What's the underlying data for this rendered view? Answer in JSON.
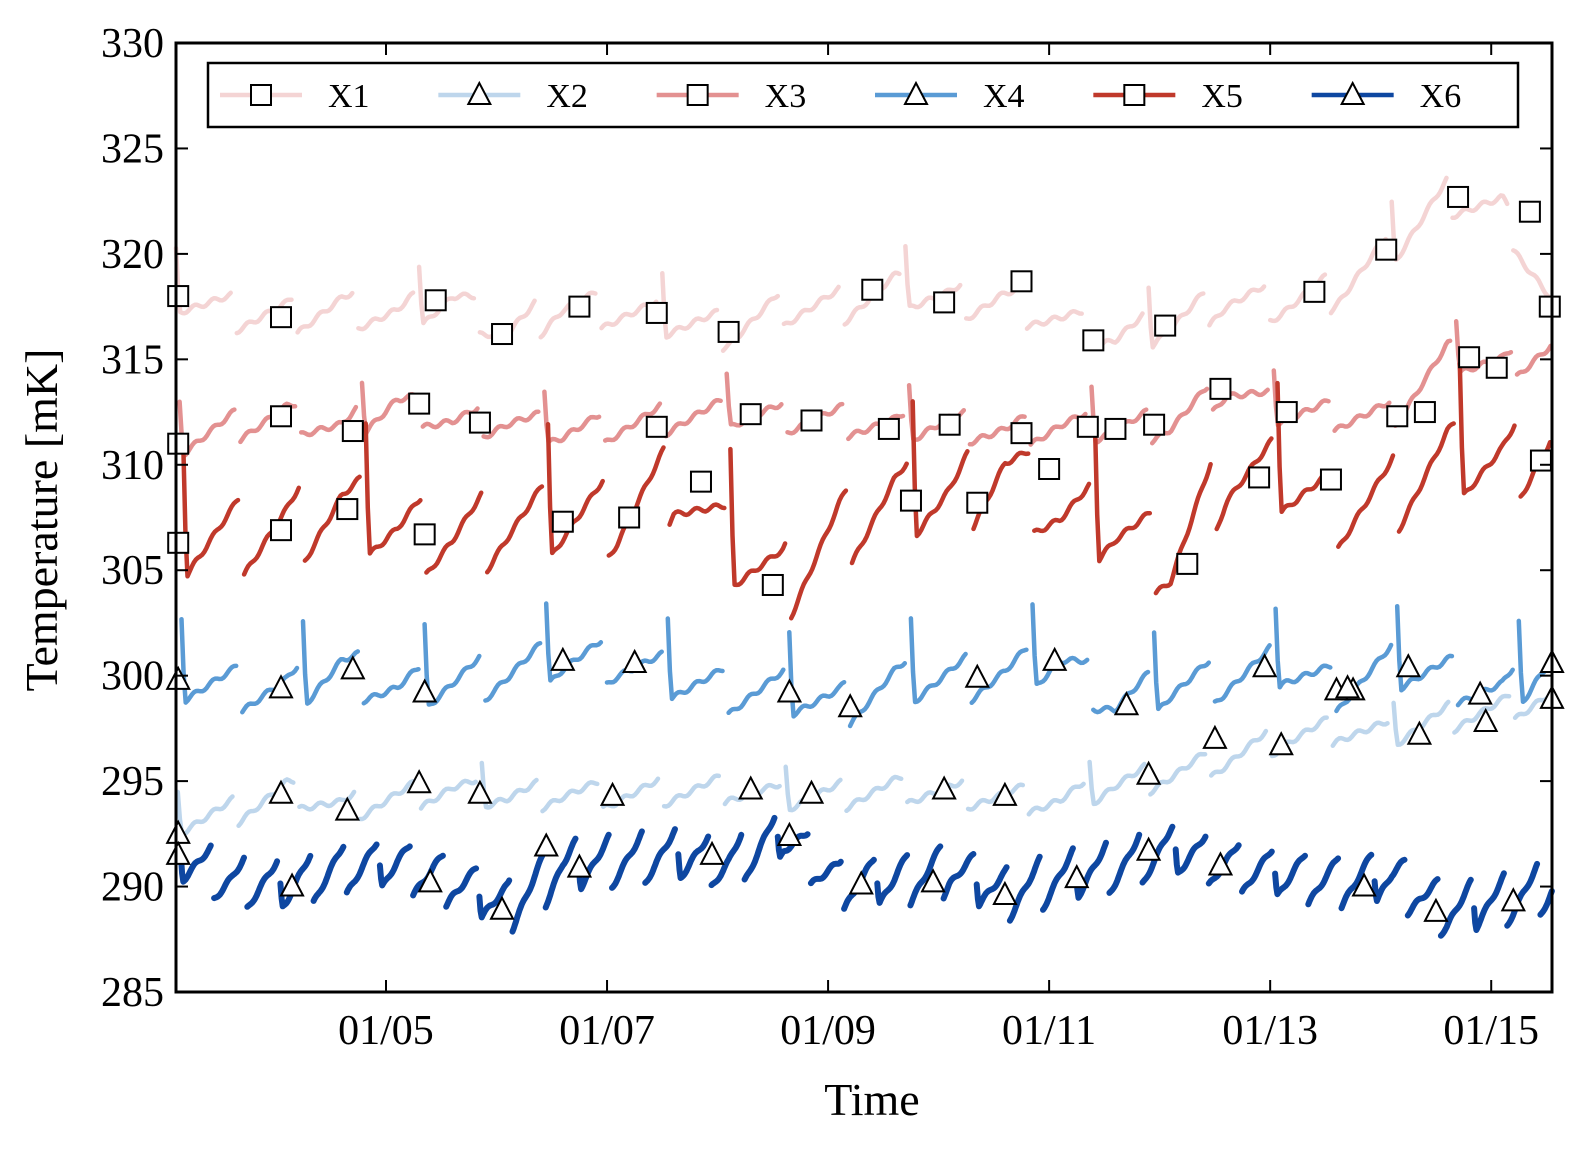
{
  "chart_data": {
    "type": "line",
    "title": "",
    "xlabel": "Time",
    "ylabel": "Temperature [mK]",
    "ylim": [
      285,
      330
    ],
    "xlim": [
      3.1,
      15.55
    ],
    "yticks": [
      285,
      290,
      295,
      300,
      305,
      310,
      315,
      320,
      325,
      330
    ],
    "xticks": [
      {
        "value": 5,
        "label": "01/05"
      },
      {
        "value": 7,
        "label": "01/07"
      },
      {
        "value": 9,
        "label": "01/09"
      },
      {
        "value": 11,
        "label": "01/11"
      },
      {
        "value": 13,
        "label": "01/13"
      },
      {
        "value": 15,
        "label": "01/15"
      }
    ],
    "legend_position": "top",
    "x_units": "day of January",
    "series": [
      {
        "name": "X1",
        "color": "#f4d4d4",
        "marker": "square",
        "base": 316.8,
        "trend": 0.25,
        "amp": 1.2,
        "period": 0.55,
        "phase": 0.0,
        "spike": 3.0,
        "spike_every": 4,
        "x": [
          3.1,
          3.6,
          4.1,
          4.6,
          5.1,
          5.6,
          6.1,
          6.6,
          7.1,
          7.6,
          8.1,
          8.6,
          9.1,
          9.6,
          10.1,
          10.6,
          11.1,
          11.6,
          12.1,
          12.6,
          13.1,
          13.6,
          14.1,
          14.6,
          15.1,
          15.55
        ],
        "y": [
          318.0,
          317.2,
          317.0,
          317.4,
          317.0,
          317.8,
          316.2,
          317.5,
          317.2,
          316.8,
          316.3,
          317.4,
          317.5,
          318.3,
          317.7,
          317.8,
          316.8,
          315.9,
          316.6,
          317.8,
          317.6,
          318.2,
          320.2,
          322.7,
          322.0,
          317.5
        ],
        "markers": {
          "x": [
            3.12,
            4.05,
            5.45,
            6.05,
            6.75,
            7.45,
            8.1,
            9.4,
            10.05,
            10.75,
            11.4,
            12.05,
            13.4,
            14.05,
            14.7,
            15.35,
            15.53
          ],
          "y": [
            318.0,
            317.0,
            317.8,
            316.2,
            317.5,
            317.2,
            316.3,
            318.3,
            317.7,
            318.7,
            315.9,
            316.6,
            318.2,
            320.2,
            322.7,
            322.0,
            317.5
          ]
        }
      },
      {
        "name": "X2",
        "color": "#bed6ec",
        "marker": "triangle",
        "base": 294.3,
        "trend": 0.35,
        "amp": 0.9,
        "period": 0.55,
        "phase": 0.1,
        "spike": 2.0,
        "spike_every": 5,
        "x": [
          3.1,
          3.6,
          4.1,
          4.6,
          5.1,
          5.6,
          6.1,
          6.6,
          7.1,
          7.6,
          8.1,
          8.6,
          9.1,
          9.6,
          10.1,
          10.6,
          11.1,
          11.6,
          12.1,
          12.6,
          13.1,
          13.6,
          14.1,
          14.6,
          15.1,
          15.55
        ],
        "y": [
          293.0,
          293.5,
          294.5,
          293.7,
          294.2,
          294.6,
          294.2,
          294.4,
          294.3,
          294.5,
          294.6,
          294.2,
          294.3,
          294.6,
          294.4,
          294.2,
          294.0,
          294.8,
          295.3,
          296.0,
          297.0,
          297.4,
          297.2,
          298.0,
          298.4,
          299.0
        ],
        "markers": {
          "x": [
            3.12,
            4.05,
            4.65,
            5.3,
            5.85,
            6.45,
            7.05,
            8.3,
            8.85,
            10.05,
            10.6,
            11.9,
            12.5,
            13.1,
            13.75,
            14.35,
            14.95,
            15.55
          ],
          "y": [
            292.5,
            294.4,
            293.6,
            294.9,
            294.4,
            291.9,
            294.3,
            294.6,
            294.4,
            294.6,
            294.3,
            295.3,
            297.0,
            296.7,
            299.3,
            297.2,
            297.8,
            298.9
          ]
        }
      },
      {
        "name": "X3",
        "color": "#e39191",
        "marker": "square",
        "base": 311.8,
        "trend": 0.3,
        "amp": 1.0,
        "period": 0.55,
        "phase": 0.2,
        "spike": 2.6,
        "spike_every": 3,
        "x": [
          3.1,
          3.6,
          4.1,
          4.6,
          5.1,
          5.6,
          6.1,
          6.6,
          7.1,
          7.6,
          8.1,
          8.6,
          9.1,
          9.6,
          10.1,
          10.6,
          11.1,
          11.6,
          12.1,
          12.6,
          13.1,
          13.6,
          14.1,
          14.6,
          15.1,
          15.55
        ],
        "y": [
          311.0,
          311.8,
          312.3,
          311.6,
          312.9,
          312.0,
          312.0,
          311.5,
          311.8,
          312.2,
          312.4,
          312.2,
          312.1,
          311.7,
          311.9,
          311.5,
          311.8,
          311.7,
          311.9,
          313.6,
          312.5,
          312.3,
          312.3,
          315.1,
          314.6,
          315.5
        ],
        "markers": {
          "x": [
            3.12,
            4.05,
            4.7,
            5.3,
            5.85,
            7.45,
            8.3,
            8.85,
            9.55,
            10.1,
            10.75,
            11.35,
            11.6,
            11.95,
            12.55,
            13.15,
            14.15,
            14.4,
            14.8,
            15.05
          ],
          "y": [
            311.0,
            312.3,
            311.6,
            312.9,
            312.0,
            311.8,
            312.4,
            312.1,
            311.7,
            311.9,
            311.5,
            311.8,
            311.7,
            311.9,
            313.6,
            312.5,
            312.3,
            312.5,
            315.1,
            314.6
          ]
        }
      },
      {
        "name": "X4",
        "color": "#5a9bd5",
        "marker": "triangle",
        "base": 299.2,
        "trend": 0.1,
        "amp": 1.5,
        "period": 0.55,
        "phase": 0.3,
        "spike": 4.0,
        "spike_every": 2,
        "x": [
          3.1,
          3.6,
          4.1,
          4.6,
          5.1,
          5.6,
          6.1,
          6.6,
          7.1,
          7.6,
          8.1,
          8.6,
          9.1,
          9.6,
          10.1,
          10.6,
          11.1,
          11.6,
          12.1,
          12.6,
          13.1,
          13.6,
          14.1,
          14.6,
          15.1,
          15.55
        ],
        "y": [
          299.8,
          299.4,
          299.2,
          300.3,
          299.2,
          299.6,
          300.1,
          300.7,
          300.6,
          299.8,
          299.2,
          299.2,
          298.5,
          299.6,
          299.8,
          300.0,
          300.7,
          298.6,
          299.4,
          299.8,
          300.4,
          299.3,
          300.4,
          299.9,
          299.0,
          300.6
        ],
        "markers": {
          "x": [
            3.12,
            4.05,
            4.7,
            5.35,
            6.6,
            7.25,
            8.65,
            9.2,
            10.35,
            11.05,
            11.7,
            12.95,
            13.6,
            13.7,
            14.25,
            14.9,
            15.55
          ],
          "y": [
            299.8,
            299.4,
            300.3,
            299.2,
            300.7,
            300.6,
            299.2,
            298.5,
            299.9,
            300.7,
            298.6,
            300.4,
            299.3,
            299.4,
            300.4,
            299.1,
            300.6
          ]
        }
      },
      {
        "name": "X5",
        "color": "#c0392b",
        "marker": "square",
        "base": 306.5,
        "trend": 0.35,
        "amp": 2.6,
        "period": 0.55,
        "phase": 0.4,
        "spike": 6.5,
        "spike_every": 3,
        "x": [
          3.1,
          3.6,
          4.1,
          4.6,
          5.1,
          5.6,
          6.1,
          6.6,
          7.1,
          7.6,
          8.1,
          8.6,
          9.1,
          9.6,
          10.1,
          10.6,
          11.1,
          11.6,
          12.1,
          12.6,
          13.1,
          13.6,
          14.1,
          14.6,
          15.1,
          15.55
        ],
        "y": [
          306.3,
          306.5,
          306.9,
          307.9,
          306.7,
          306.5,
          307.0,
          307.3,
          307.5,
          309.2,
          306.0,
          304.3,
          306.8,
          308.3,
          308.2,
          309.8,
          307.5,
          306.9,
          305.3,
          309.4,
          309.3,
          307.8,
          308.5,
          310.2,
          309.8,
          311.0
        ],
        "markers": {
          "x": [
            3.12,
            4.05,
            4.65,
            5.35,
            6.6,
            7.2,
            7.85,
            8.5,
            9.75,
            10.35,
            11.0,
            12.25,
            12.9,
            13.55,
            15.45
          ],
          "y": [
            306.3,
            306.9,
            307.9,
            306.7,
            307.3,
            307.5,
            309.2,
            304.3,
            308.3,
            308.2,
            309.8,
            305.3,
            309.4,
            309.3,
            310.2
          ]
        }
      },
      {
        "name": "X6",
        "color": "#0e47a1",
        "marker": "triangle",
        "base": 290.0,
        "trend": 0.12,
        "amp": 1.7,
        "period": 0.3,
        "phase": 0.5,
        "spike": 1.2,
        "spike_every": 3,
        "x": [
          3.1,
          3.6,
          4.1,
          4.6,
          5.1,
          5.6,
          6.1,
          6.6,
          7.1,
          7.6,
          8.1,
          8.6,
          9.1,
          9.6,
          10.1,
          10.6,
          11.1,
          11.6,
          12.1,
          12.6,
          13.1,
          13.6,
          14.1,
          14.6,
          15.1,
          15.55
        ],
        "y": [
          291.5,
          290.2,
          290.0,
          290.8,
          291.0,
          290.2,
          289.0,
          290.9,
          291.2,
          291.5,
          291.0,
          292.4,
          290.1,
          290.2,
          290.8,
          289.6,
          290.4,
          290.9,
          291.7,
          291.0,
          290.5,
          290.2,
          290.4,
          288.8,
          289.3,
          290.0
        ],
        "markers": {
          "x": [
            3.12,
            4.15,
            5.4,
            6.05,
            6.75,
            7.95,
            8.65,
            9.3,
            9.95,
            10.6,
            11.25,
            11.9,
            12.55,
            13.85,
            14.5,
            15.2
          ],
          "y": [
            291.5,
            290.0,
            290.2,
            288.9,
            290.9,
            291.5,
            292.4,
            290.1,
            290.2,
            289.6,
            290.4,
            291.7,
            291.0,
            290.0,
            288.8,
            289.3
          ]
        }
      }
    ]
  }
}
